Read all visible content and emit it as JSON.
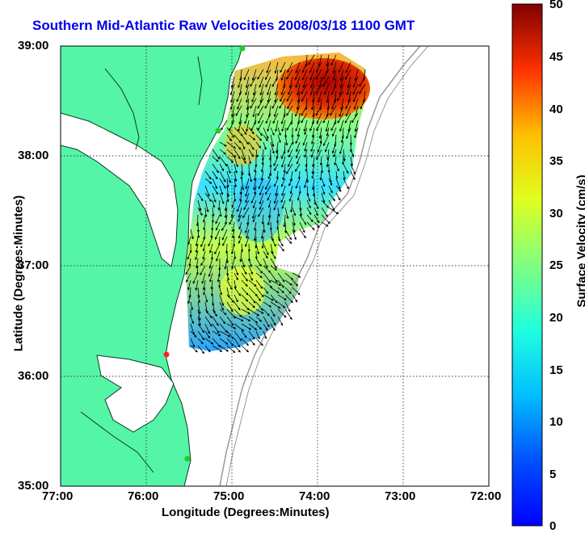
{
  "title": "Southern Mid-Atlantic Raw Velocities 2008/03/18 1100 GMT",
  "x_axis": {
    "label": "Longitude (Degrees:Minutes)",
    "ticks": [
      "77:00",
      "76:00",
      "75:00",
      "74:00",
      "73:00",
      "72:00"
    ]
  },
  "y_axis": {
    "label": "Latitude (Degrees:Minutes)",
    "ticks": [
      "39:00",
      "38:00",
      "37:00",
      "36:00",
      "35:00"
    ]
  },
  "colorbar": {
    "label": "Surface Velocity (cm/s)",
    "ticks": [
      "50",
      "45",
      "40",
      "35",
      "30",
      "25",
      "20",
      "15",
      "10",
      "5",
      "0"
    ],
    "min": 0,
    "max": 50,
    "colormap": "jet"
  },
  "colors": {
    "land": "#55f5a8",
    "coastline": "#0a3a1a",
    "bathymetry": "#999999",
    "grid": "#000000",
    "title": "#0000ee",
    "station_green": "#22cc22",
    "station_red": "#ff2222"
  },
  "chart_data": {
    "type": "heatmap",
    "map_extent": {
      "lon": [
        "77:00",
        "72:00"
      ],
      "lat": [
        "35:00",
        "39:00"
      ]
    },
    "grid": true,
    "overlay": "surface current vectors (arrows)"
  }
}
